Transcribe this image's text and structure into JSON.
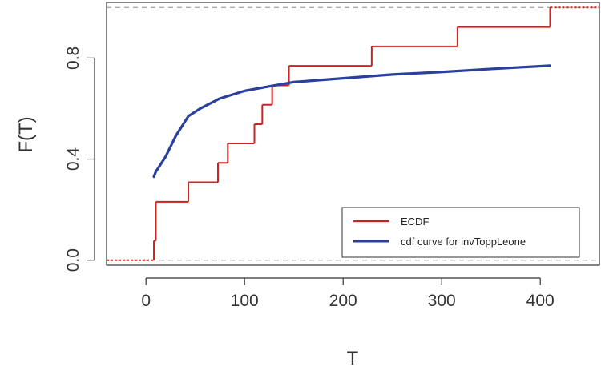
{
  "chart_data": {
    "type": "line",
    "xlabel": "T",
    "ylabel": "F(T)",
    "xlim": [
      -40,
      460
    ],
    "ylim": [
      -0.02,
      1.02
    ],
    "x_ticks": [
      0,
      100,
      200,
      300,
      400
    ],
    "y_ticks": [
      0.0,
      0.4,
      0.8
    ],
    "y_tick_labels": [
      "0.0",
      "0.4",
      "0.8"
    ],
    "reference_lines": [
      0,
      1
    ],
    "legend_position": "bottom-right",
    "colors": {
      "ecdf": "#cc2222",
      "cdf": "#2a3f9e",
      "reference": "#aaaaaa"
    },
    "series": [
      {
        "name": "ECDF",
        "kind": "step",
        "x": [
          8,
          10,
          43,
          73,
          83,
          110,
          118,
          128,
          145,
          229,
          316,
          410
        ],
        "y": [
          0.077,
          0.231,
          0.308,
          0.385,
          0.462,
          0.538,
          0.615,
          0.692,
          0.769,
          0.846,
          0.923,
          1.0
        ]
      },
      {
        "name": "cdf curve for invToppLeone",
        "kind": "line",
        "x": [
          8,
          10,
          15,
          20,
          30,
          43,
          55,
          75,
          100,
          128,
          150,
          200,
          250,
          300,
          350,
          410
        ],
        "y": [
          0.33,
          0.35,
          0.38,
          0.41,
          0.49,
          0.57,
          0.6,
          0.64,
          0.67,
          0.69,
          0.705,
          0.72,
          0.735,
          0.745,
          0.757,
          0.77
        ]
      }
    ]
  }
}
